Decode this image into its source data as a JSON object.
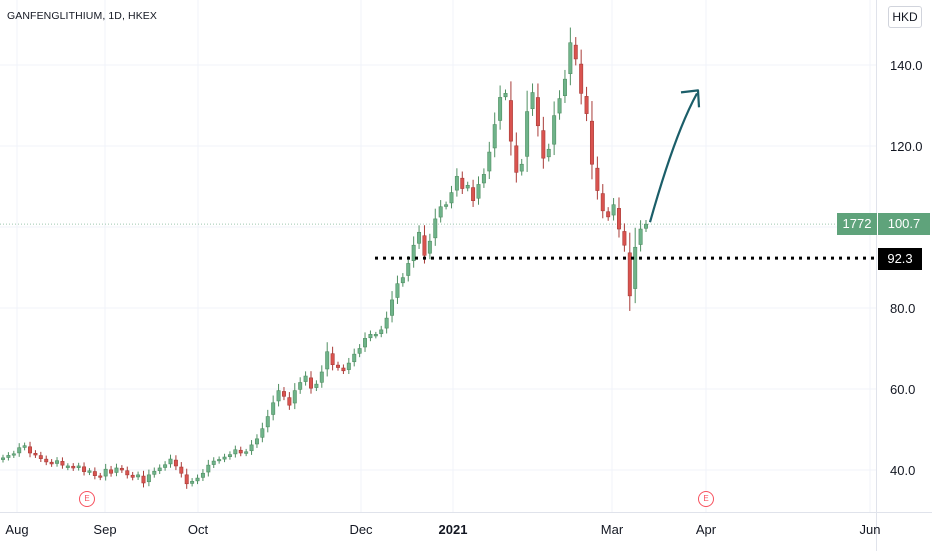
{
  "header": {
    "symbol": "GANFENGLITHIUM, 1D, HKEX",
    "currency": "HKD"
  },
  "price_axis": {
    "ticks": [
      "140.0",
      "120.0",
      "80.0",
      "60.0",
      "40.0"
    ]
  },
  "time_axis": {
    "ticks": [
      "Aug",
      "Sep",
      "Oct",
      "Dec",
      "2021",
      "Mar",
      "Apr",
      "Jun"
    ]
  },
  "labels": {
    "ticker_badge": "1772",
    "last_price": "100.7",
    "level_price": "92.3",
    "event_marker": "E"
  },
  "colors": {
    "up": "#26a69a",
    "up_fill": "#6fb38a",
    "down": "#ef5350",
    "down_fill": "#d9534f",
    "arrow": "#1b5e69",
    "badge_green": "#5fa37b",
    "level_line": "#000000"
  },
  "chart_data": {
    "type": "candlestick",
    "title": "GANFENGLITHIUM, 1D, HKEX",
    "currency": "HKD",
    "x_range": [
      "2020-07-23",
      "2021-06-05"
    ],
    "ylim": [
      30,
      152
    ],
    "horizontal_line": 92.3,
    "last_price": 100.7,
    "projection_arrow_to": 133,
    "grid": true,
    "close_series": [
      43,
      43.6,
      44,
      45.5,
      46,
      44.2,
      43.7,
      42.8,
      42,
      41.5,
      42.3,
      41.2,
      41,
      40.5,
      41,
      39.6,
      39.8,
      38.6,
      38.2,
      40.2,
      39.2,
      40.5,
      40,
      38.8,
      38.2,
      38.8,
      36.8,
      38.8,
      39.7,
      40.5,
      41.3,
      42.7,
      41,
      39.2,
      36.6,
      37.2,
      38,
      39.2,
      41.2,
      42.2,
      42.6,
      43.2,
      43.8,
      45,
      44.2,
      44.5,
      46.2,
      47.7,
      50.2,
      53.2,
      56.6,
      59.6,
      58.2,
      56,
      59.6,
      61.6,
      63.2,
      60.2,
      61.2,
      64.2,
      69.2,
      66,
      65.3,
      64.5,
      66.4,
      68.6,
      70,
      72.5,
      73.5,
      73.5,
      74.6,
      77.5,
      82,
      86,
      87.5,
      91,
      95.5,
      98.7,
      93,
      96.5,
      102,
      105,
      105.5,
      108.5,
      112.5,
      109.5,
      110.3,
      106.5,
      110.5,
      113,
      118.5,
      125.3,
      132,
      133,
      121.2,
      113.5,
      115.5,
      128.5,
      133.2,
      125,
      117,
      119.2,
      127.5,
      131.7,
      136.5,
      145.5,
      141.5,
      133,
      128,
      115.5,
      109,
      104,
      102.5,
      105.5,
      99.5,
      95.5,
      83,
      95,
      99.5,
      100.7
    ]
  }
}
